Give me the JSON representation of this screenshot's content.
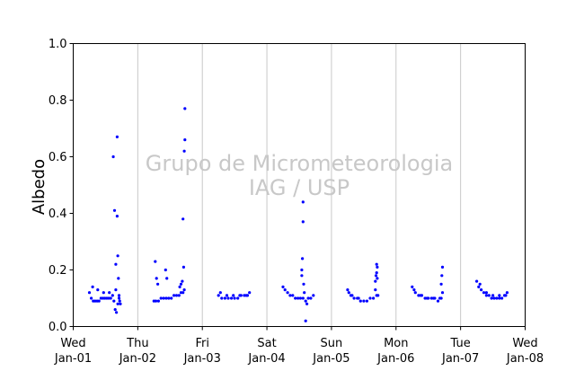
{
  "chart_data": {
    "type": "scatter",
    "ylabel": "Albedo",
    "ylim": [
      0.0,
      1.0
    ],
    "y_ticks": [
      "0.0",
      "0.2",
      "0.4",
      "0.6",
      "0.8",
      "1.0"
    ],
    "xlim": [
      "Jan-01",
      "Jan-08"
    ],
    "x_ticks": [
      {
        "day": "Wed",
        "date": "Jan-01"
      },
      {
        "day": "Thu",
        "date": "Jan-02"
      },
      {
        "day": "Fri",
        "date": "Jan-03"
      },
      {
        "day": "Sat",
        "date": "Jan-04"
      },
      {
        "day": "Sun",
        "date": "Jan-05"
      },
      {
        "day": "Mon",
        "date": "Jan-06"
      },
      {
        "day": "Tue",
        "date": "Jan-07"
      },
      {
        "day": "Wed",
        "date": "Jan-08"
      }
    ],
    "grid": "vertical",
    "marker_color": "#0000ff",
    "grid_color": "#c8c8c8",
    "watermark": [
      "Grupo de Micrometeorologia",
      "IAG / USP"
    ],
    "watermark_color": "#c8c8c8",
    "series": [
      {
        "x_days": [
          0.25,
          0.28,
          0.31,
          0.34,
          0.37,
          0.4,
          0.43,
          0.46,
          0.49,
          0.52,
          0.55,
          0.58,
          0.61,
          0.63,
          0.65,
          0.67,
          0.69,
          0.71,
          0.72,
          0.73,
          0.3,
          0.38,
          0.47,
          0.56,
          0.62,
          0.64,
          0.66,
          0.66,
          0.68,
          0.68,
          0.69,
          0.7,
          0.71
        ],
        "y": [
          0.12,
          0.1,
          0.09,
          0.09,
          0.09,
          0.09,
          0.1,
          0.1,
          0.1,
          0.1,
          0.1,
          0.1,
          0.11,
          0.09,
          0.06,
          0.05,
          0.08,
          0.1,
          0.09,
          0.08,
          0.14,
          0.13,
          0.12,
          0.12,
          0.6,
          0.41,
          0.22,
          0.13,
          0.39,
          0.67,
          0.25,
          0.17,
          0.11
        ]
      },
      {
        "x_days": [
          1.25,
          1.28,
          1.32,
          1.36,
          1.4,
          1.44,
          1.48,
          1.52,
          1.56,
          1.6,
          1.64,
          1.67,
          1.7,
          1.72,
          1.27,
          1.29,
          1.31,
          1.43,
          1.45,
          1.65,
          1.67,
          1.69,
          1.7,
          1.71,
          1.72,
          1.73,
          1.73
        ],
        "y": [
          0.09,
          0.09,
          0.09,
          0.1,
          0.1,
          0.1,
          0.1,
          0.1,
          0.11,
          0.11,
          0.11,
          0.12,
          0.12,
          0.13,
          0.23,
          0.17,
          0.15,
          0.2,
          0.17,
          0.14,
          0.15,
          0.16,
          0.38,
          0.21,
          0.62,
          0.66,
          0.77
        ]
      },
      {
        "x_days": [
          2.25,
          2.3,
          2.35,
          2.4,
          2.45,
          2.5,
          2.55,
          2.6,
          2.65,
          2.7,
          2.73,
          2.28,
          2.38,
          2.48,
          2.58,
          2.68
        ],
        "y": [
          0.11,
          0.1,
          0.1,
          0.1,
          0.1,
          0.1,
          0.1,
          0.11,
          0.11,
          0.11,
          0.12,
          0.12,
          0.11,
          0.11,
          0.11,
          0.11
        ]
      },
      {
        "x_days": [
          3.25,
          3.28,
          3.32,
          3.36,
          3.4,
          3.44,
          3.48,
          3.52,
          3.56,
          3.6,
          3.64,
          3.68,
          3.72,
          3.54,
          3.54,
          3.55,
          3.56,
          3.56,
          3.57,
          3.58,
          3.6,
          3.62
        ],
        "y": [
          0.14,
          0.13,
          0.12,
          0.11,
          0.11,
          0.1,
          0.1,
          0.1,
          0.1,
          0.09,
          0.1,
          0.1,
          0.11,
          0.18,
          0.2,
          0.24,
          0.37,
          0.44,
          0.15,
          0.12,
          0.02,
          0.08
        ]
      },
      {
        "x_days": [
          4.25,
          4.3,
          4.35,
          4.4,
          4.45,
          4.5,
          4.55,
          4.6,
          4.65,
          4.7,
          4.72,
          4.27,
          4.32,
          4.42,
          4.68,
          4.68,
          4.69,
          4.7,
          4.7,
          4.71,
          4.71
        ],
        "y": [
          0.13,
          0.11,
          0.1,
          0.1,
          0.09,
          0.09,
          0.09,
          0.1,
          0.1,
          0.11,
          0.11,
          0.12,
          0.11,
          0.1,
          0.13,
          0.16,
          0.18,
          0.19,
          0.22,
          0.17,
          0.21
        ]
      },
      {
        "x_days": [
          5.25,
          5.3,
          5.35,
          5.4,
          5.45,
          5.5,
          5.55,
          5.6,
          5.65,
          5.7,
          5.72,
          5.28,
          5.38,
          5.48,
          5.58,
          5.68,
          5.7,
          5.71,
          5.72
        ],
        "y": [
          0.14,
          0.12,
          0.11,
          0.11,
          0.1,
          0.1,
          0.1,
          0.1,
          0.09,
          0.1,
          0.12,
          0.13,
          0.11,
          0.1,
          0.1,
          0.1,
          0.15,
          0.18,
          0.21
        ]
      },
      {
        "x_days": [
          6.25,
          6.28,
          6.32,
          6.36,
          6.4,
          6.44,
          6.48,
          6.52,
          6.56,
          6.6,
          6.64,
          6.68,
          6.72,
          6.3,
          6.4,
          6.5,
          6.6,
          6.7
        ],
        "y": [
          0.16,
          0.14,
          0.13,
          0.12,
          0.11,
          0.11,
          0.1,
          0.1,
          0.1,
          0.1,
          0.1,
          0.11,
          0.12,
          0.15,
          0.12,
          0.11,
          0.11,
          0.11
        ]
      }
    ]
  }
}
